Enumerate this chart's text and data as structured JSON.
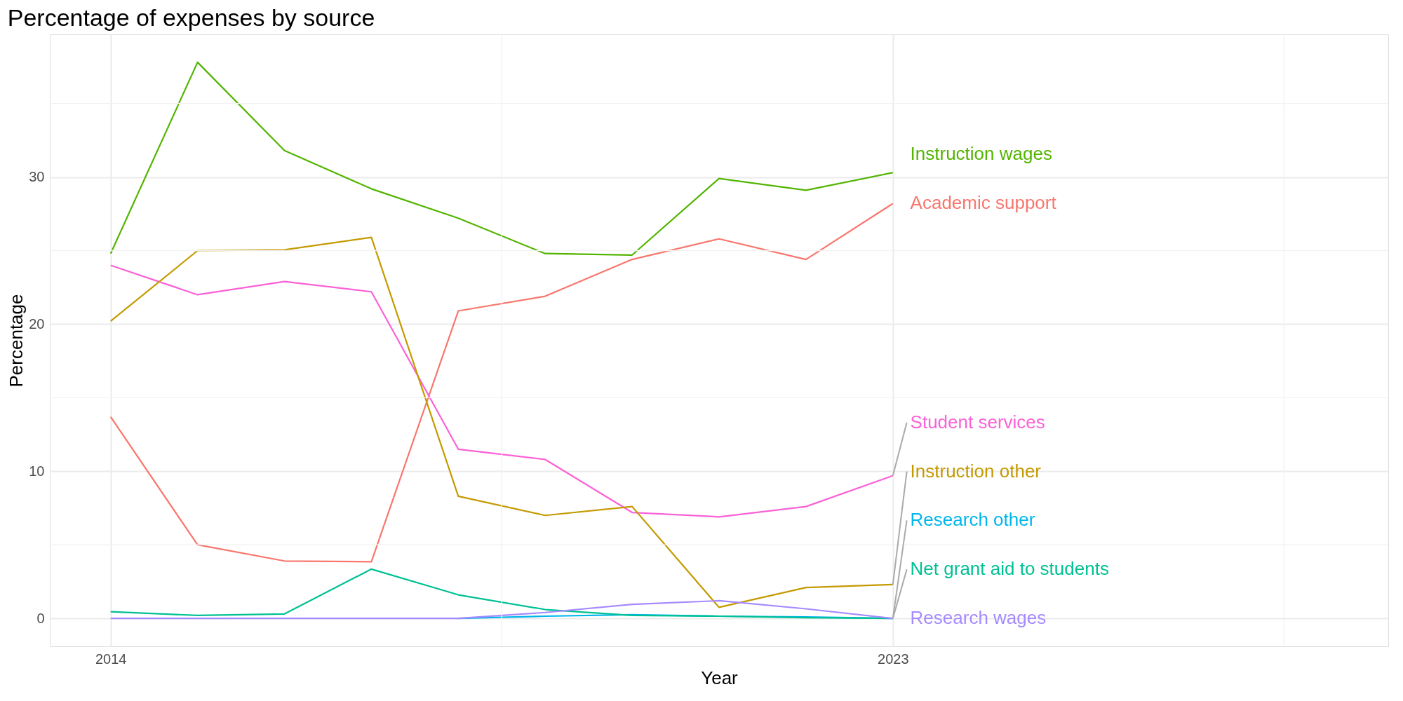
{
  "chart_data": {
    "type": "line",
    "title": "Percentage of expenses by source",
    "xlabel": "Year",
    "ylabel": "Percentage",
    "x": [
      2014,
      2015,
      2016,
      2017,
      2018,
      2019,
      2020,
      2021,
      2022,
      2023
    ],
    "series": [
      {
        "name": "Instruction wages",
        "color": "#53b400",
        "values": [
          24.8,
          37.8,
          31.8,
          29.2,
          27.2,
          24.8,
          24.7,
          29.9,
          29.1,
          30.3
        ]
      },
      {
        "name": "Academic support",
        "color": "#f8766d",
        "values": [
          13.7,
          5.0,
          3.9,
          3.85,
          20.9,
          21.9,
          24.4,
          25.8,
          24.4,
          28.2
        ]
      },
      {
        "name": "Student services",
        "color": "#fb61d7",
        "values": [
          24.0,
          22.0,
          22.9,
          22.2,
          11.5,
          10.8,
          7.2,
          6.9,
          7.6,
          9.7
        ]
      },
      {
        "name": "Instruction other",
        "color": "#c49a00",
        "values": [
          20.2,
          25.0,
          25.05,
          25.9,
          8.3,
          7.0,
          7.6,
          0.75,
          2.1,
          2.3
        ]
      },
      {
        "name": "Research other",
        "color": "#00b6eb",
        "values": [
          null,
          null,
          null,
          null,
          0,
          0.15,
          0.25,
          0.15,
          0.1,
          0
        ]
      },
      {
        "name": "Net grant aid to students",
        "color": "#00c094",
        "values": [
          0.45,
          0.2,
          0.3,
          3.35,
          1.6,
          0.6,
          0.2,
          0.15,
          0.05,
          0
        ]
      },
      {
        "name": "Research wages",
        "color": "#a58aff",
        "values": [
          0,
          0,
          0,
          0,
          0,
          0.4,
          0.95,
          1.2,
          0.65,
          0
        ]
      }
    ],
    "xlim": [
      2013.3,
      2028.7
    ],
    "ylim": [
      -1.9,
      39.7
    ],
    "xticks": [
      2014,
      2023
    ],
    "yticks": [
      0,
      10,
      20,
      30
    ],
    "grid": true,
    "legend": false,
    "line_style": "solid",
    "marker": "none"
  }
}
